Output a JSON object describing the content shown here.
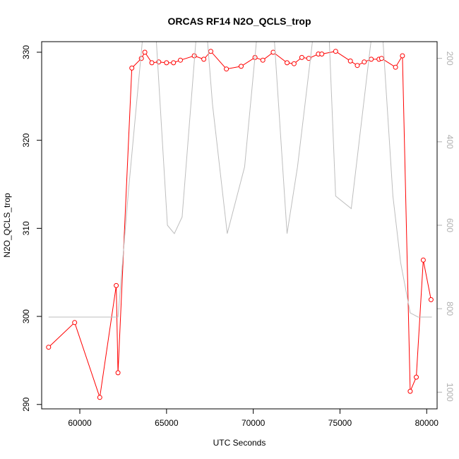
{
  "chart_data": {
    "type": "line",
    "title": "ORCAS RF14 N2O_QCLS_trop",
    "xlabel": "UTC Seconds",
    "ylabel": "N2O_QCLS_trop",
    "xlim": [
      57800,
      80600
    ],
    "ylim": [
      289.5,
      331.2
    ],
    "y2lim": [
      1040,
      160
    ],
    "x_ticks": [
      60000,
      65000,
      70000,
      75000,
      80000
    ],
    "y_ticks": [
      290,
      300,
      310,
      320,
      330
    ],
    "y2_ticks": [
      200,
      400,
      600,
      800,
      1000
    ],
    "grid": false,
    "colors": {
      "primary": "#ff0000",
      "secondary": "#bebebe",
      "axis": "#000000",
      "secondary_axis": "#b0b0b0"
    },
    "series": [
      {
        "axis": "left",
        "style": "line-circles",
        "color": "#ff0000",
        "x": [
          58200,
          59700,
          61150,
          62100,
          62200,
          63000,
          63550,
          63750,
          64150,
          64550,
          65000,
          65400,
          65800,
          66600,
          67150,
          67550,
          68450,
          69300,
          70100,
          70550,
          71150,
          71950,
          72350,
          72800,
          73200,
          73750,
          73950,
          74750,
          75600,
          76000,
          76400,
          76800,
          77250,
          77400,
          78200,
          78600,
          79050,
          79400,
          79800,
          80250
        ],
        "y": [
          296.5,
          299.3,
          290.8,
          303.5,
          293.6,
          328.2,
          329.3,
          330.0,
          328.8,
          328.9,
          328.8,
          328.8,
          329.1,
          329.6,
          329.2,
          330.1,
          328.1,
          328.4,
          329.4,
          329.1,
          330.0,
          328.8,
          328.7,
          329.4,
          329.3,
          329.8,
          329.8,
          330.1,
          329.0,
          328.5,
          328.9,
          329.2,
          329.2,
          329.3,
          328.3,
          329.6,
          291.5,
          293.1,
          306.4,
          301.9
        ]
      },
      {
        "axis": "right",
        "style": "line",
        "color": "#bebebe",
        "x": [
          58200,
          61000,
          62200,
          62800,
          63600,
          63800,
          64300,
          65050,
          65450,
          65900,
          66800,
          67100,
          67650,
          68500,
          69500,
          70500,
          71000,
          71950,
          72550,
          73300,
          73800,
          74250,
          74750,
          75650,
          76900,
          77300,
          78050,
          78500,
          79050,
          79500,
          80300
        ],
        "y": [
          820,
          820,
          820,
          520,
          160,
          20,
          80,
          600,
          620,
          580,
          100,
          20,
          310,
          620,
          460,
          20,
          20,
          620,
          460,
          200,
          20,
          20,
          530,
          560,
          120,
          40,
          530,
          690,
          810,
          820,
          820
        ]
      }
    ]
  }
}
